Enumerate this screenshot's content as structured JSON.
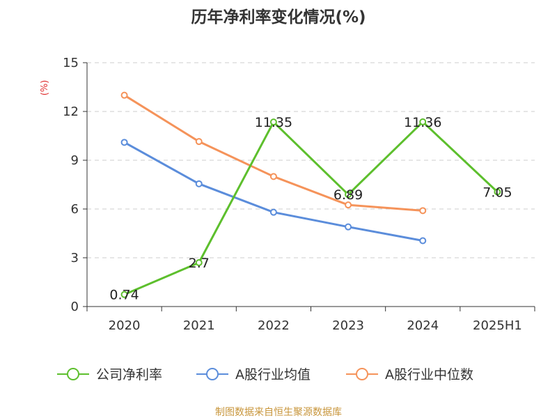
{
  "chart_data": {
    "type": "line",
    "title": "历年净利率变化情况(%)",
    "ylabel": "(%)",
    "categories": [
      "2020",
      "2021",
      "2022",
      "2023",
      "2024",
      "2025H1"
    ],
    "ylim": [
      0,
      15
    ],
    "yticks": [
      "0",
      "3",
      "6",
      "9",
      "12",
      "15"
    ],
    "grid": true,
    "legend_position": "bottom",
    "series": [
      {
        "name": "公司净利率",
        "color": "#5dbf2d",
        "values": [
          0.74,
          2.7,
          11.35,
          6.89,
          11.36,
          7.05
        ],
        "labels": [
          "0.74",
          "2.7",
          "11.35",
          "6.89",
          "11.36",
          "7.05"
        ]
      },
      {
        "name": "A股行业均值",
        "color": "#5b8ddb",
        "values": [
          10.1,
          7.55,
          5.8,
          4.9,
          4.05,
          null
        ]
      },
      {
        "name": "A股行业中位数",
        "color": "#f5935a",
        "values": [
          13.0,
          10.15,
          8.0,
          6.25,
          5.9,
          null
        ]
      }
    ],
    "source": "制图数据来自恒生聚源数据库",
    "colors": {
      "axis": "#333333",
      "grid": "#cccccc",
      "unit": "#e03030",
      "source": "#c8963c"
    }
  }
}
